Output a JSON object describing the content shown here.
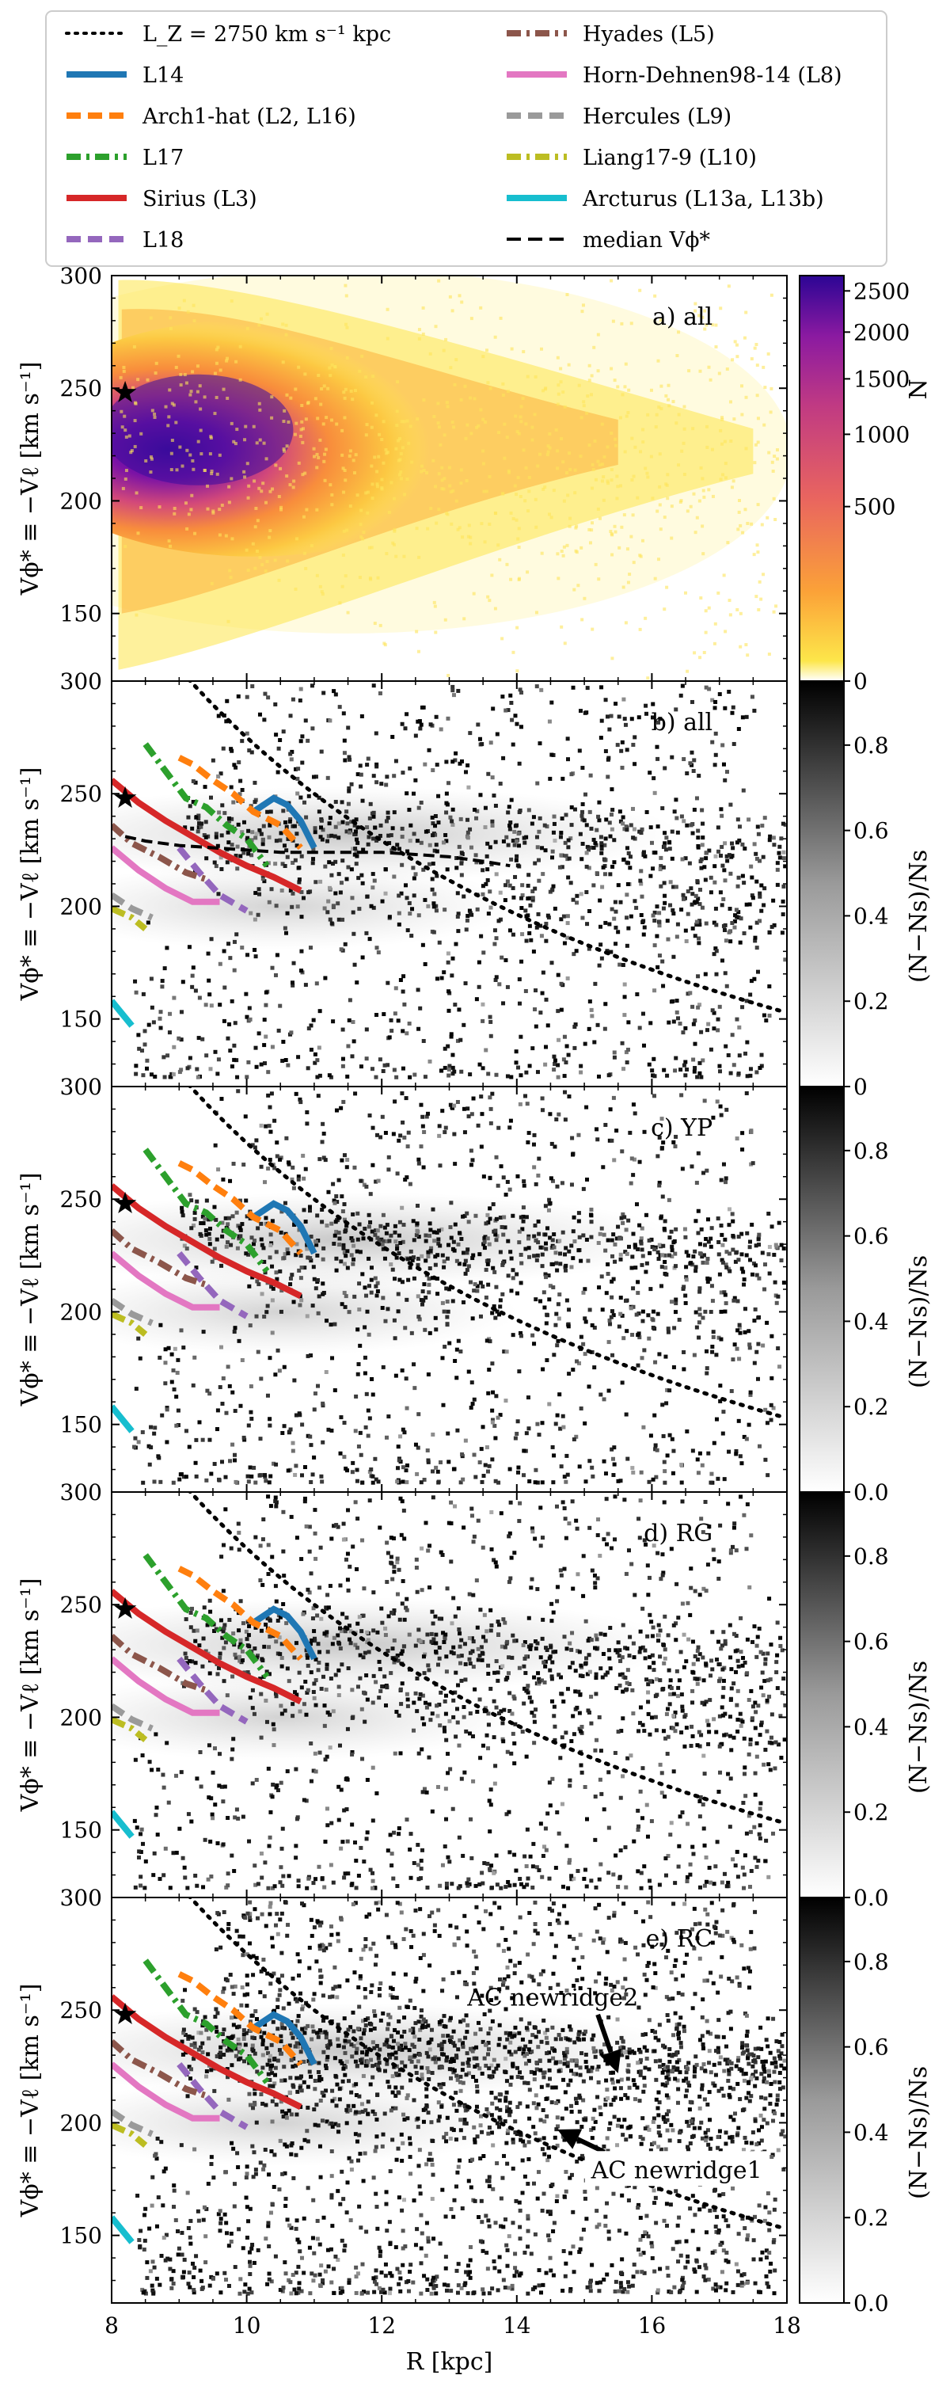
{
  "legend": {
    "entries": [
      {
        "id": "lz",
        "label": "L_Z = 2750 km s⁻¹ kpc",
        "color": "#000000",
        "dash": "dot"
      },
      {
        "id": "l14",
        "label": "L14",
        "color": "#1f77b4",
        "dash": "solid"
      },
      {
        "id": "arch1",
        "label": "Arch1-hat (L2, L16)",
        "color": "#ff7f0e",
        "dash": "dash"
      },
      {
        "id": "l17",
        "label": "L17",
        "color": "#2ca02c",
        "dash": "dashdot"
      },
      {
        "id": "sirius",
        "label": "Sirius (L3)",
        "color": "#d62728",
        "dash": "solid"
      },
      {
        "id": "l18",
        "label": "L18",
        "color": "#9467bd",
        "dash": "dash"
      },
      {
        "id": "hyades",
        "label": "Hyades (L5)",
        "color": "#8c564b",
        "dash": "dashdot"
      },
      {
        "id": "horn",
        "label": "Horn-Dehnen98-14 (L8)",
        "color": "#e377c2",
        "dash": "solid"
      },
      {
        "id": "hercules",
        "label": "Hercules (L9)",
        "color": "#9a9a9a",
        "dash": "dash"
      },
      {
        "id": "liang",
        "label": "Liang17-9 (L10)",
        "color": "#bcbd22",
        "dash": "dashdot"
      },
      {
        "id": "arcturus",
        "label": "Arcturus (L13a, L13b)",
        "color": "#17becf",
        "dash": "solid"
      },
      {
        "id": "median",
        "label": "median Vϕ*",
        "color": "#000000",
        "dash": "dash"
      }
    ]
  },
  "colors": {
    "star": "#000000",
    "axis": "#000000"
  },
  "annotations": {
    "newridge2": "AC newridge2",
    "newridge1": "AC newridge1"
  },
  "chart_data": [
    {
      "type": "heatmap",
      "panel": "a",
      "label": "a) all",
      "xlabel": "R [kpc]",
      "ylabel": "Vϕ* ≡ −Vℓ [km s⁻¹]",
      "xlim": [
        8,
        18
      ],
      "ylim": [
        120,
        300
      ],
      "yticks": [
        150,
        200,
        250,
        300
      ],
      "yticklabels": [
        "150",
        "200",
        "250",
        "300"
      ],
      "colormap": "plasma_r",
      "colorbar": {
        "label": "N",
        "ticks": [
          0,
          500,
          1000,
          1500,
          2000,
          2500
        ],
        "max": 2700
      },
      "sun": {
        "R": 8.2,
        "V": 248
      }
    },
    {
      "type": "heatmap",
      "panel": "b",
      "label": "b) all",
      "ylabel": "Vϕ* ≡ −Vℓ [km s⁻¹]",
      "xlim": [
        8,
        18
      ],
      "ylim": [
        120,
        300
      ],
      "yticks": [
        150,
        200,
        250,
        300
      ],
      "yticklabels": [
        "150",
        "200",
        "250",
        "300"
      ],
      "colormap": "Greys",
      "colorbar": {
        "label": "(N−Ns)/Ns",
        "ticks": [
          0.0,
          0.2,
          0.4,
          0.6,
          0.8
        ],
        "ticklabels": [
          "0",
          "0.2",
          "0.4",
          "0.6",
          "0.8"
        ],
        "max": 0.95
      },
      "show_median": true,
      "median": {
        "R": [
          8.2,
          8.5,
          9.0,
          9.5,
          10.0,
          10.5,
          11.0,
          11.5,
          12.0,
          12.5,
          13.0,
          13.5,
          13.9
        ],
        "V": [
          231,
          229,
          227,
          226,
          225,
          224,
          224,
          224,
          224,
          223,
          222,
          220,
          218
        ]
      },
      "sun": {
        "R": 8.2,
        "V": 248
      }
    },
    {
      "type": "heatmap",
      "panel": "c",
      "label": "c) YP",
      "ylabel": "Vϕ* ≡ −Vℓ [km s⁻¹]",
      "xlim": [
        8,
        18
      ],
      "ylim": [
        120,
        300
      ],
      "yticks": [
        150,
        200,
        250,
        300
      ],
      "yticklabels": [
        "150",
        "200",
        "250",
        "300"
      ],
      "colormap": "Greys",
      "colorbar": {
        "label": "(N−Ns)/Ns",
        "ticks": [
          0.0,
          0.2,
          0.4,
          0.6,
          0.8
        ],
        "ticklabels": [
          "0.0",
          "0.2",
          "0.4",
          "0.6",
          "0.8"
        ],
        "max": 0.95
      },
      "sun": {
        "R": 8.2,
        "V": 248
      }
    },
    {
      "type": "heatmap",
      "panel": "d",
      "label": "d) RG",
      "ylabel": "Vϕ* ≡ −Vℓ [km s⁻¹]",
      "xlim": [
        8,
        18
      ],
      "ylim": [
        120,
        300
      ],
      "yticks": [
        150,
        200,
        250,
        300
      ],
      "yticklabels": [
        "150",
        "200",
        "250",
        "300"
      ],
      "colormap": "Greys",
      "colorbar": {
        "label": "(N−Ns)/Ns",
        "ticks": [
          0.0,
          0.2,
          0.4,
          0.6,
          0.8
        ],
        "ticklabels": [
          "0.0",
          "0.2",
          "0.4",
          "0.6",
          "0.8"
        ],
        "max": 0.95
      },
      "sun": {
        "R": 8.2,
        "V": 248
      }
    },
    {
      "type": "heatmap",
      "panel": "e",
      "label": "e) RC",
      "xlabel": "R [kpc]",
      "ylabel": "Vϕ* ≡ −Vℓ [km s⁻¹]",
      "xlim": [
        8,
        18
      ],
      "ylim": [
        120,
        300
      ],
      "xticks": [
        8,
        10,
        12,
        14,
        16,
        18
      ],
      "xticklabels": [
        "8",
        "10",
        "12",
        "14",
        "16",
        "18"
      ],
      "yticks": [
        150,
        200,
        250,
        300
      ],
      "yticklabels": [
        "150",
        "200",
        "250",
        "300"
      ],
      "colormap": "Greys",
      "colorbar": {
        "label": "(N−Ns)/Ns",
        "ticks": [
          0.0,
          0.2,
          0.4,
          0.6,
          0.8
        ],
        "ticklabels": [
          "0.0",
          "0.2",
          "0.4",
          "0.6",
          "0.8"
        ],
        "max": 0.95
      },
      "arrows": [
        {
          "label_key": "newridge2",
          "tip": {
            "R": 15.5,
            "V": 222
          },
          "tail": {
            "R": 15.2,
            "V": 248
          }
        },
        {
          "label_key": "newridge1",
          "tip": {
            "R": 14.6,
            "V": 197
          },
          "tail": {
            "R": 15.3,
            "V": 187
          }
        }
      ],
      "sun": {
        "R": 8.2,
        "V": 248
      }
    }
  ],
  "ridges": {
    "l14": {
      "R": [
        10.1,
        10.4,
        10.6,
        10.8,
        11.0
      ],
      "V": [
        242,
        248,
        245,
        238,
        226
      ]
    },
    "arch1": {
      "R": [
        9.0,
        9.2,
        9.5,
        9.8,
        10.1,
        10.5,
        10.8
      ],
      "V": [
        266,
        263,
        256,
        250,
        242,
        236,
        226
      ]
    },
    "l17": {
      "R": [
        8.5,
        8.8,
        9.1,
        9.4,
        9.7,
        10.0,
        10.3
      ],
      "V": [
        272,
        260,
        248,
        244,
        236,
        230,
        218
      ]
    },
    "sirius": {
      "R": [
        8.0,
        8.4,
        8.8,
        9.2,
        9.6,
        10.0,
        10.4,
        10.8
      ],
      "V": [
        256,
        246,
        238,
        231,
        224,
        218,
        213,
        207
      ]
    },
    "l18": {
      "R": [
        9.0,
        9.3,
        9.6,
        10.0
      ],
      "V": [
        226,
        215,
        205,
        198
      ]
    },
    "hyades": {
      "R": [
        8.0,
        8.3,
        8.7,
        9.1,
        9.4
      ],
      "V": [
        236,
        228,
        222,
        215,
        212
      ]
    },
    "horn": {
      "R": [
        8.0,
        8.4,
        8.8,
        9.2,
        9.6
      ],
      "V": [
        226,
        216,
        208,
        202,
        202
      ]
    },
    "hercules": {
      "R": [
        8.0,
        8.3,
        8.6
      ],
      "V": [
        205,
        199,
        195
      ]
    },
    "liang": {
      "R": [
        8.0,
        8.3,
        8.5
      ],
      "V": [
        199,
        195,
        190
      ]
    },
    "arcturus": {
      "R": [
        8.0,
        8.3
      ],
      "V": [
        158,
        147
      ]
    }
  },
  "lz_curve": {
    "Lz": 2750
  }
}
